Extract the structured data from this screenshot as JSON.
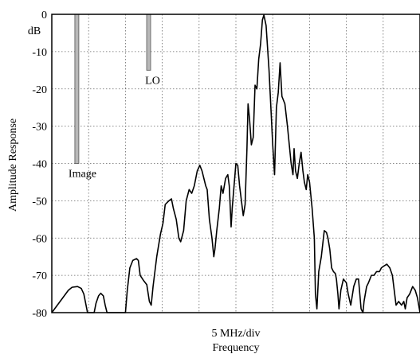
{
  "chart_data": {
    "type": "line",
    "title": "",
    "ylabel": "Amplitude Response",
    "xlabel_lines": [
      "5 MHz/div",
      "Frequency"
    ],
    "y_unit": "dB",
    "ylim": [
      -80,
      0
    ],
    "y_ticks": [
      0,
      -10,
      -20,
      -30,
      -40,
      -50,
      -60,
      -70,
      -80
    ],
    "x_divisions": 10,
    "xlim": [
      0,
      10
    ],
    "grid": true,
    "markers": [
      {
        "name": "image-marker",
        "label": "Image",
        "x": 0.68,
        "top": 0,
        "bottom": -40
      },
      {
        "name": "lo-marker",
        "label": "LO",
        "x": 2.63,
        "top": 0,
        "bottom": -15
      }
    ],
    "series": [
      {
        "color": "#000000",
        "points": [
          [
            0.0,
            -80
          ],
          [
            0.15,
            -78
          ],
          [
            0.3,
            -76
          ],
          [
            0.45,
            -74
          ],
          [
            0.55,
            -73.2
          ],
          [
            0.7,
            -73
          ],
          [
            0.8,
            -73.5
          ],
          [
            0.87,
            -75
          ],
          [
            0.93,
            -78
          ],
          [
            0.97,
            -80
          ],
          [
            1.15,
            -80
          ],
          [
            1.2,
            -77.5
          ],
          [
            1.27,
            -75.5
          ],
          [
            1.33,
            -74.8
          ],
          [
            1.4,
            -75.5
          ],
          [
            1.45,
            -78
          ],
          [
            1.5,
            -80
          ],
          [
            2.0,
            -80
          ],
          [
            2.05,
            -74
          ],
          [
            2.12,
            -68
          ],
          [
            2.2,
            -66
          ],
          [
            2.3,
            -65.5
          ],
          [
            2.35,
            -66
          ],
          [
            2.4,
            -70
          ],
          [
            2.5,
            -71.5
          ],
          [
            2.58,
            -72.5
          ],
          [
            2.65,
            -77
          ],
          [
            2.7,
            -78
          ],
          [
            2.75,
            -73
          ],
          [
            2.85,
            -65
          ],
          [
            2.95,
            -59
          ],
          [
            3.02,
            -56
          ],
          [
            3.08,
            -51
          ],
          [
            3.18,
            -50
          ],
          [
            3.25,
            -49.5
          ],
          [
            3.3,
            -52
          ],
          [
            3.38,
            -55
          ],
          [
            3.45,
            -60
          ],
          [
            3.5,
            -61
          ],
          [
            3.58,
            -58
          ],
          [
            3.65,
            -50
          ],
          [
            3.73,
            -47
          ],
          [
            3.8,
            -48
          ],
          [
            3.87,
            -46
          ],
          [
            3.95,
            -42
          ],
          [
            4.02,
            -40.5
          ],
          [
            4.08,
            -42
          ],
          [
            4.13,
            -44
          ],
          [
            4.18,
            -46
          ],
          [
            4.22,
            -47
          ],
          [
            4.28,
            -55
          ],
          [
            4.35,
            -60
          ],
          [
            4.4,
            -65
          ],
          [
            4.43,
            -63
          ],
          [
            4.48,
            -58
          ],
          [
            4.55,
            -52
          ],
          [
            4.6,
            -46
          ],
          [
            4.65,
            -48
          ],
          [
            4.72,
            -44
          ],
          [
            4.78,
            -43
          ],
          [
            4.82,
            -46
          ],
          [
            4.87,
            -57
          ],
          [
            4.9,
            -52
          ],
          [
            4.95,
            -46
          ],
          [
            5.0,
            -40
          ],
          [
            5.05,
            -40.5
          ],
          [
            5.1,
            -46
          ],
          [
            5.15,
            -50
          ],
          [
            5.2,
            -54
          ],
          [
            5.25,
            -51
          ],
          [
            5.3,
            -36
          ],
          [
            5.33,
            -24
          ],
          [
            5.37,
            -28
          ],
          [
            5.42,
            -35
          ],
          [
            5.47,
            -33
          ],
          [
            5.52,
            -19
          ],
          [
            5.57,
            -20
          ],
          [
            5.62,
            -12
          ],
          [
            5.67,
            -8
          ],
          [
            5.72,
            -1.5
          ],
          [
            5.76,
            -0.2
          ],
          [
            5.82,
            -3
          ],
          [
            5.86,
            -9
          ],
          [
            5.9,
            -15
          ],
          [
            5.95,
            -25
          ],
          [
            6.0,
            -35
          ],
          [
            6.05,
            -43
          ],
          [
            6.1,
            -25
          ],
          [
            6.15,
            -21
          ],
          [
            6.2,
            -13
          ],
          [
            6.25,
            -22
          ],
          [
            6.33,
            -24
          ],
          [
            6.4,
            -30
          ],
          [
            6.45,
            -35
          ],
          [
            6.5,
            -40
          ],
          [
            6.55,
            -43
          ],
          [
            6.58,
            -36
          ],
          [
            6.62,
            -42
          ],
          [
            6.67,
            -44
          ],
          [
            6.72,
            -40
          ],
          [
            6.77,
            -37
          ],
          [
            6.82,
            -42
          ],
          [
            6.86,
            -45
          ],
          [
            6.91,
            -47
          ],
          [
            6.95,
            -43
          ],
          [
            7.0,
            -45
          ],
          [
            7.07,
            -52
          ],
          [
            7.13,
            -60
          ],
          [
            7.16,
            -75
          ],
          [
            7.2,
            -79
          ],
          [
            7.25,
            -69
          ],
          [
            7.32,
            -65
          ],
          [
            7.4,
            -58
          ],
          [
            7.46,
            -58.5
          ],
          [
            7.5,
            -60
          ],
          [
            7.55,
            -63
          ],
          [
            7.6,
            -68
          ],
          [
            7.65,
            -69
          ],
          [
            7.7,
            -69.5
          ],
          [
            7.73,
            -71
          ],
          [
            7.77,
            -75
          ],
          [
            7.8,
            -79
          ],
          [
            7.85,
            -74
          ],
          [
            7.92,
            -71
          ],
          [
            8.0,
            -72
          ],
          [
            8.05,
            -75
          ],
          [
            8.12,
            -78
          ],
          [
            8.2,
            -73
          ],
          [
            8.27,
            -71
          ],
          [
            8.33,
            -71
          ],
          [
            8.4,
            -79
          ],
          [
            8.45,
            -80
          ],
          [
            8.48,
            -77
          ],
          [
            8.55,
            -73
          ],
          [
            8.6,
            -72
          ],
          [
            8.68,
            -70
          ],
          [
            8.75,
            -70
          ],
          [
            8.82,
            -69
          ],
          [
            8.9,
            -69
          ],
          [
            8.95,
            -68
          ],
          [
            9.02,
            -67.5
          ],
          [
            9.1,
            -67
          ],
          [
            9.18,
            -68
          ],
          [
            9.25,
            -70
          ],
          [
            9.3,
            -74
          ],
          [
            9.35,
            -78
          ],
          [
            9.42,
            -77
          ],
          [
            9.5,
            -78
          ],
          [
            9.56,
            -77
          ],
          [
            9.6,
            -79
          ],
          [
            9.65,
            -76
          ],
          [
            9.72,
            -75
          ],
          [
            9.8,
            -73
          ],
          [
            9.87,
            -74
          ],
          [
            9.93,
            -76
          ],
          [
            10.0,
            -80
          ]
        ]
      }
    ]
  }
}
